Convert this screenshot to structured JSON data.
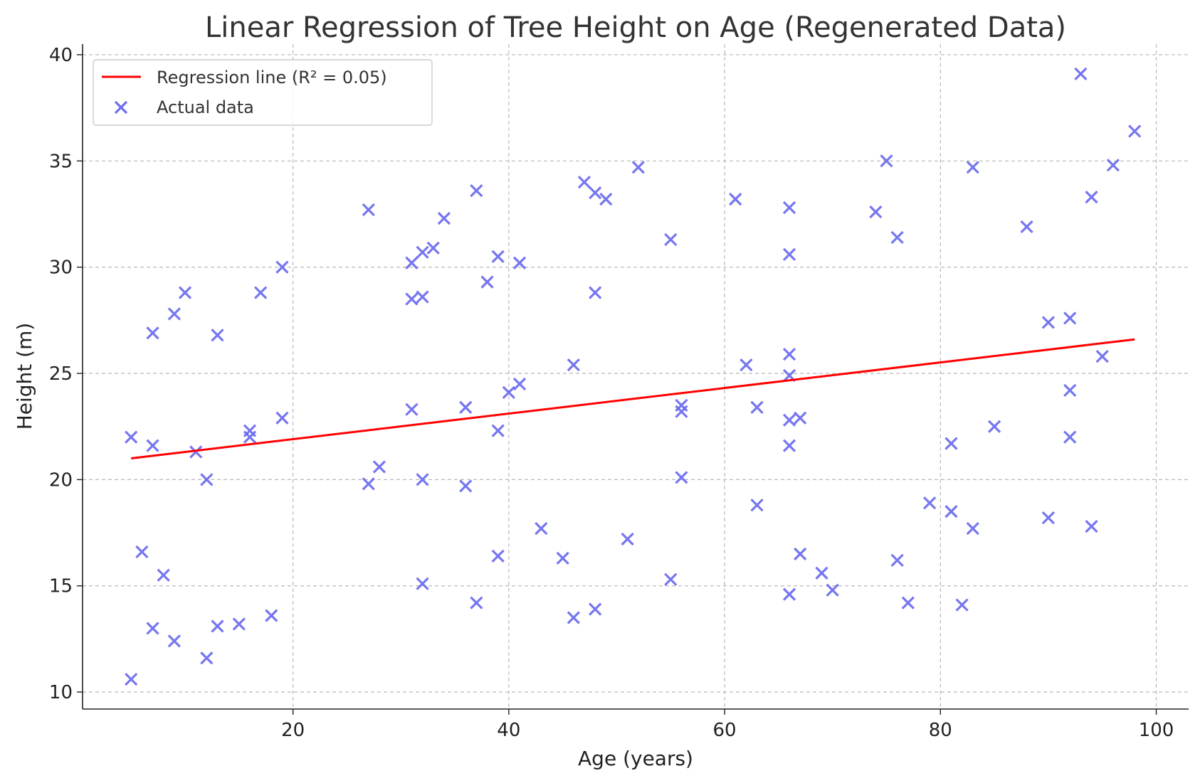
{
  "chart_data": {
    "type": "scatter",
    "title": "Linear Regression of Tree Height on Age (Regenerated Data)",
    "xlabel": "Age (years)",
    "ylabel": "Height (m)",
    "xlim": [
      0.5,
      103
    ],
    "ylim": [
      9.2,
      40.5
    ],
    "xticks": [
      20,
      40,
      60,
      80,
      100
    ],
    "yticks": [
      10,
      15,
      20,
      25,
      30,
      35,
      40
    ],
    "grid": true,
    "legend_position": "top-left",
    "series": [
      {
        "name": "Regression line (R² = 0.05)",
        "kind": "line",
        "color": "#ff0000",
        "x": [
          5,
          98
        ],
        "y": [
          21.0,
          26.6
        ]
      },
      {
        "name": "Actual data",
        "kind": "scatter",
        "marker": "x",
        "color": "#6b6bef",
        "points": [
          [
            5,
            22.0
          ],
          [
            5,
            10.6
          ],
          [
            6,
            16.6
          ],
          [
            7,
            26.9
          ],
          [
            7,
            21.6
          ],
          [
            7,
            13.0
          ],
          [
            8,
            15.5
          ],
          [
            9,
            27.8
          ],
          [
            9,
            12.4
          ],
          [
            10,
            28.8
          ],
          [
            11,
            21.3
          ],
          [
            12,
            20.0
          ],
          [
            12,
            11.6
          ],
          [
            13,
            26.8
          ],
          [
            13,
            13.1
          ],
          [
            15,
            13.2
          ],
          [
            16,
            22.3
          ],
          [
            16,
            22.0
          ],
          [
            17,
            28.8
          ],
          [
            18,
            13.6
          ],
          [
            19,
            30.0
          ],
          [
            19,
            22.9
          ],
          [
            27,
            32.7
          ],
          [
            27,
            19.8
          ],
          [
            28,
            20.6
          ],
          [
            31,
            30.2
          ],
          [
            31,
            28.5
          ],
          [
            31,
            23.3
          ],
          [
            32,
            30.7
          ],
          [
            32,
            28.6
          ],
          [
            32,
            20.0
          ],
          [
            32,
            15.1
          ],
          [
            33,
            30.9
          ],
          [
            34,
            32.3
          ],
          [
            36,
            23.4
          ],
          [
            36,
            19.7
          ],
          [
            37,
            33.6
          ],
          [
            37,
            14.2
          ],
          [
            38,
            29.3
          ],
          [
            39,
            30.5
          ],
          [
            39,
            22.3
          ],
          [
            39,
            16.4
          ],
          [
            40,
            24.1
          ],
          [
            41,
            30.2
          ],
          [
            41,
            24.5
          ],
          [
            43,
            17.7
          ],
          [
            45,
            16.3
          ],
          [
            46,
            25.4
          ],
          [
            46,
            13.5
          ],
          [
            47,
            34.0
          ],
          [
            48,
            33.5
          ],
          [
            48,
            28.8
          ],
          [
            48,
            13.9
          ],
          [
            49,
            33.2
          ],
          [
            51,
            17.2
          ],
          [
            52,
            34.7
          ],
          [
            55,
            31.3
          ],
          [
            55,
            15.3
          ],
          [
            56,
            23.5
          ],
          [
            56,
            23.2
          ],
          [
            56,
            20.1
          ],
          [
            61,
            33.2
          ],
          [
            62,
            25.4
          ],
          [
            63,
            23.4
          ],
          [
            63,
            18.8
          ],
          [
            66,
            32.8
          ],
          [
            66,
            30.6
          ],
          [
            66,
            25.9
          ],
          [
            66,
            24.9
          ],
          [
            66,
            22.8
          ],
          [
            66,
            21.6
          ],
          [
            66,
            14.6
          ],
          [
            67,
            22.9
          ],
          [
            67,
            16.5
          ],
          [
            69,
            15.6
          ],
          [
            70,
            14.8
          ],
          [
            74,
            32.6
          ],
          [
            75,
            35.0
          ],
          [
            76,
            31.4
          ],
          [
            76,
            16.2
          ],
          [
            77,
            14.2
          ],
          [
            79,
            18.9
          ],
          [
            81,
            21.7
          ],
          [
            81,
            18.5
          ],
          [
            82,
            14.1
          ],
          [
            83,
            34.7
          ],
          [
            83,
            17.7
          ],
          [
            85,
            22.5
          ],
          [
            88,
            31.9
          ],
          [
            90,
            27.4
          ],
          [
            90,
            18.2
          ],
          [
            92,
            27.6
          ],
          [
            92,
            24.2
          ],
          [
            92,
            22.0
          ],
          [
            93,
            39.1
          ],
          [
            94,
            33.3
          ],
          [
            94,
            17.8
          ],
          [
            95,
            25.8
          ],
          [
            96,
            34.8
          ],
          [
            98,
            36.4
          ]
        ]
      }
    ]
  }
}
